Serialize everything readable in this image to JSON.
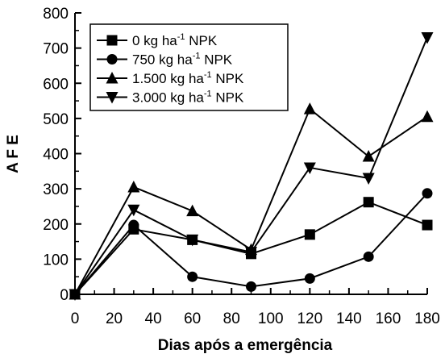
{
  "chart_data": {
    "type": "line",
    "title": "",
    "xlabel": "Dias após a emergência",
    "ylabel": "A F E",
    "xlim": [
      0,
      180
    ],
    "ylim": [
      0,
      800
    ],
    "xticks": [
      0,
      20,
      40,
      60,
      80,
      100,
      120,
      140,
      160,
      180
    ],
    "yticks": [
      0,
      100,
      200,
      300,
      400,
      500,
      600,
      700,
      800
    ],
    "grid": false,
    "legend_position": "top-left",
    "x": [
      0,
      30,
      60,
      90,
      120,
      150,
      180
    ],
    "series": [
      {
        "name": "0    kg ha-1 NPK",
        "label_main": "0    kg ha",
        "label_sup": "-1",
        "label_tail": " NPK",
        "marker": "square",
        "values": [
          0,
          185,
          155,
          115,
          170,
          262,
          197
        ]
      },
      {
        "name": "750   kg ha-1 NPK",
        "label_main": "750   kg ha",
        "label_sup": "-1",
        "label_tail": " NPK",
        "marker": "circle",
        "values": [
          0,
          197,
          50,
          22,
          45,
          107,
          287
        ]
      },
      {
        "name": "1.500 kg ha-1 NPK",
        "label_main": "1.500 kg ha",
        "label_sup": "-1",
        "label_tail": " NPK",
        "marker": "triangle-up",
        "values": [
          0,
          305,
          237,
          127,
          527,
          392,
          505
        ]
      },
      {
        "name": "3.000 kg ha-1 NPK",
        "label_main": "3.000 kg ha",
        "label_sup": "-1",
        "label_tail": " NPK",
        "marker": "triangle-down",
        "values": [
          0,
          240,
          155,
          120,
          360,
          330,
          730
        ]
      }
    ]
  }
}
